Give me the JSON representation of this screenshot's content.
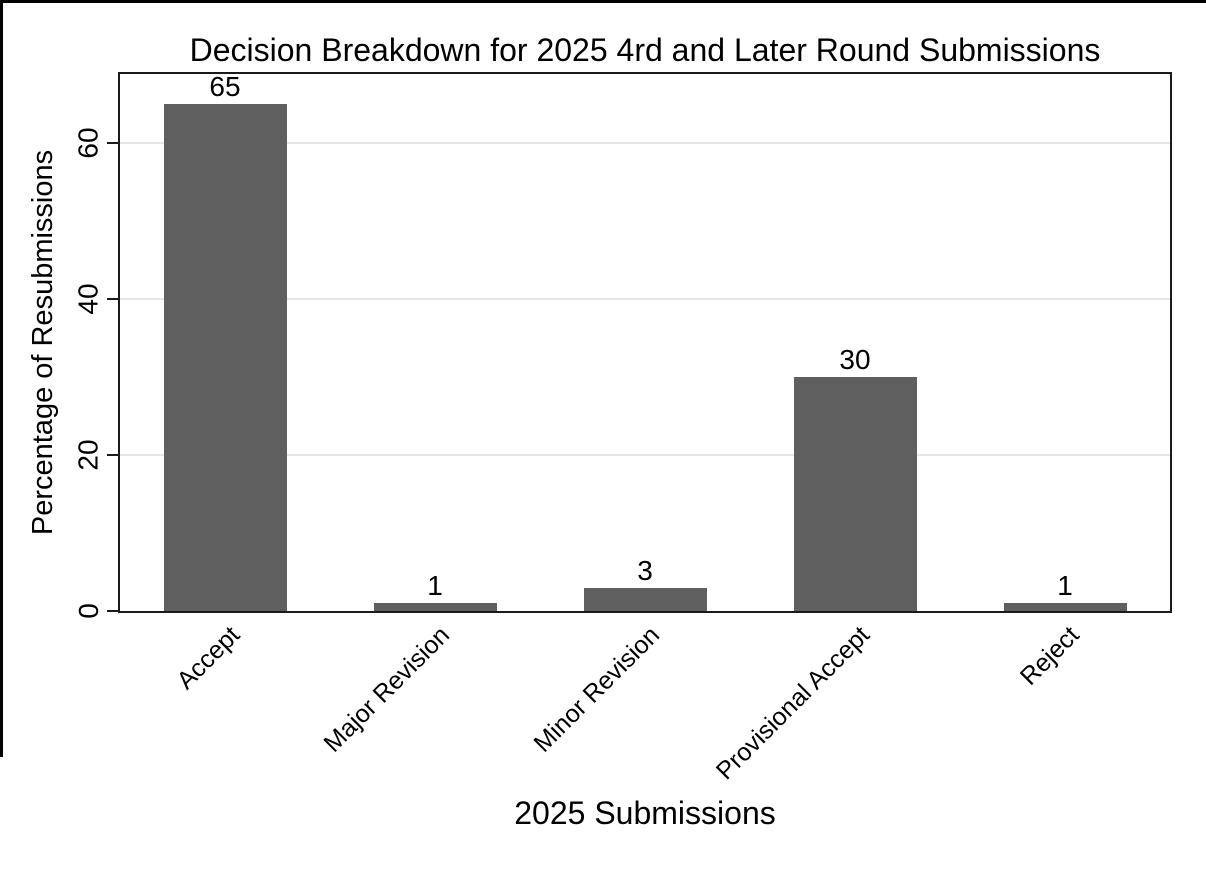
{
  "chart_data": {
    "type": "bar",
    "title": "Decision Breakdown for 2025 4rd and Later Round Submissions",
    "xlabel": "2025 Submissions",
    "ylabel": "Percentage of Resubmissions",
    "categories": [
      "Accept",
      "Major Revision",
      "Minor Revision",
      "Provisional Accept",
      "Reject"
    ],
    "values": [
      65,
      1,
      3,
      30,
      1
    ],
    "bar_labels": [
      "65",
      "1",
      "3",
      "30",
      "1"
    ],
    "yticks": [
      0,
      20,
      40,
      60
    ],
    "ytick_labels": [
      "0",
      "20",
      "40",
      "60"
    ],
    "ylim": [
      0,
      68.8
    ],
    "grid": "horizontal gridlines at y ticks, drawn light gray",
    "legend": "none",
    "bar_label_position": "above bars",
    "x_label_rotation_deg": 45,
    "y_tick_rotation_deg": 90,
    "colors": {
      "bar": "#5f5f5f",
      "frame": "#1a1a1a",
      "gridline": "#e6e6e6",
      "text": "#000000",
      "background": "#ffffff",
      "window_edge": "#000000"
    }
  }
}
